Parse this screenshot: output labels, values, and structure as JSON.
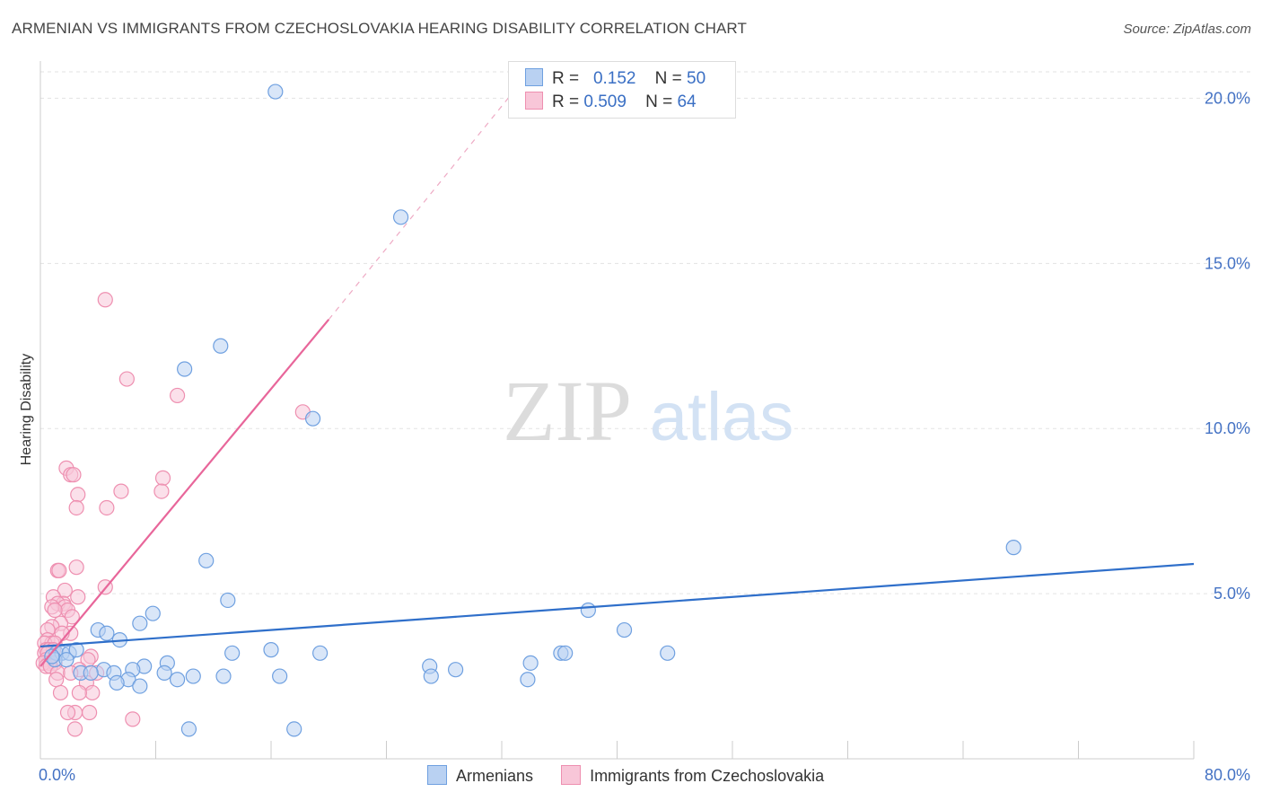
{
  "title": "ARMENIAN VS IMMIGRANTS FROM CZECHOSLOVAKIA HEARING DISABILITY CORRELATION CHART",
  "source": "Source: ZipAtlas.com",
  "watermark": {
    "zip": "ZIP",
    "atlas": "atlas"
  },
  "legend": {
    "rows": [
      {
        "r_label": "R =",
        "r_value": "0.152",
        "n_label": "N =",
        "n_value": "50"
      },
      {
        "r_label": "R =",
        "r_value": "0.509",
        "n_label": "N =",
        "n_value": "64"
      }
    ]
  },
  "chart_data": {
    "type": "scatter",
    "title": "ARMENIAN VS IMMIGRANTS FROM CZECHOSLOVAKIA HEARING DISABILITY CORRELATION CHART",
    "xlabel": "",
    "ylabel": "Hearing Disability",
    "xlim": [
      0,
      80
    ],
    "ylim": [
      0,
      20.8
    ],
    "x_tick_labels": [
      "0.0%",
      "80.0%"
    ],
    "y_ticks": [
      5,
      10,
      15,
      20
    ],
    "y_tick_labels": [
      "5.0%",
      "10.0%",
      "15.0%",
      "20.0%"
    ],
    "grid": true,
    "legend_placement": "top-center",
    "series": [
      {
        "name": "Armenians",
        "color": "#6fa0e0",
        "fill": "#b9d1f2",
        "r": 0.152,
        "n": 50,
        "trend": {
          "x0": 0,
          "y0": 3.4,
          "x1": 80,
          "y1": 5.9
        },
        "points": [
          [
            16.3,
            20.2
          ],
          [
            25.0,
            16.4
          ],
          [
            12.5,
            12.5
          ],
          [
            10.0,
            11.8
          ],
          [
            18.9,
            10.3
          ],
          [
            67.5,
            6.4
          ],
          [
            11.5,
            6.0
          ],
          [
            13.0,
            4.8
          ],
          [
            7.8,
            4.4
          ],
          [
            38.0,
            4.5
          ],
          [
            6.9,
            4.1
          ],
          [
            4.0,
            3.9
          ],
          [
            40.5,
            3.9
          ],
          [
            4.6,
            3.8
          ],
          [
            5.5,
            3.6
          ],
          [
            1.1,
            3.2
          ],
          [
            1.5,
            3.2
          ],
          [
            2.0,
            3.2
          ],
          [
            2.5,
            3.3
          ],
          [
            13.3,
            3.2
          ],
          [
            16.0,
            3.3
          ],
          [
            19.4,
            3.2
          ],
          [
            36.1,
            3.2
          ],
          [
            36.4,
            3.2
          ],
          [
            43.5,
            3.2
          ],
          [
            1.0,
            3.0
          ],
          [
            1.8,
            3.0
          ],
          [
            8.8,
            2.9
          ],
          [
            34.0,
            2.9
          ],
          [
            7.2,
            2.8
          ],
          [
            27.0,
            2.8
          ],
          [
            28.8,
            2.7
          ],
          [
            4.4,
            2.7
          ],
          [
            6.4,
            2.7
          ],
          [
            2.8,
            2.6
          ],
          [
            5.1,
            2.6
          ],
          [
            8.6,
            2.6
          ],
          [
            3.5,
            2.6
          ],
          [
            6.1,
            2.4
          ],
          [
            10.6,
            2.5
          ],
          [
            12.7,
            2.5
          ],
          [
            16.6,
            2.5
          ],
          [
            27.1,
            2.5
          ],
          [
            9.5,
            2.4
          ],
          [
            33.8,
            2.4
          ],
          [
            5.3,
            2.3
          ],
          [
            6.9,
            2.2
          ],
          [
            10.3,
            0.9
          ],
          [
            17.6,
            0.9
          ],
          [
            0.8,
            3.1
          ]
        ]
      },
      {
        "name": "Immigrants from Czechoslovakia",
        "color": "#ee8fb0",
        "fill": "#f8c6d8",
        "r": 0.509,
        "n": 64,
        "trend": {
          "x0": 0,
          "y0": 2.8,
          "x1": 20,
          "y1": 13.3
        },
        "trend_dashed": {
          "x0": 20,
          "y0": 13.3,
          "x1": 33,
          "y1": 20.3
        },
        "points": [
          [
            4.5,
            13.9
          ],
          [
            6.0,
            11.5
          ],
          [
            9.5,
            11.0
          ],
          [
            18.2,
            10.5
          ],
          [
            1.8,
            8.8
          ],
          [
            2.1,
            8.6
          ],
          [
            2.3,
            8.6
          ],
          [
            8.5,
            8.5
          ],
          [
            8.4,
            8.1
          ],
          [
            5.6,
            8.1
          ],
          [
            2.6,
            8.0
          ],
          [
            2.5,
            7.6
          ],
          [
            4.6,
            7.6
          ],
          [
            1.2,
            5.7
          ],
          [
            2.5,
            5.8
          ],
          [
            1.3,
            5.7
          ],
          [
            4.5,
            5.2
          ],
          [
            1.7,
            5.1
          ],
          [
            2.6,
            4.9
          ],
          [
            0.9,
            4.9
          ],
          [
            1.6,
            4.7
          ],
          [
            1.2,
            4.7
          ],
          [
            1.7,
            4.6
          ],
          [
            0.8,
            4.6
          ],
          [
            1.9,
            4.5
          ],
          [
            1.0,
            4.5
          ],
          [
            2.2,
            4.3
          ],
          [
            1.4,
            4.1
          ],
          [
            0.8,
            4.0
          ],
          [
            0.5,
            3.9
          ],
          [
            2.1,
            3.8
          ],
          [
            1.5,
            3.8
          ],
          [
            0.5,
            3.6
          ],
          [
            0.8,
            3.5
          ],
          [
            0.3,
            3.5
          ],
          [
            1.0,
            3.5
          ],
          [
            0.4,
            3.3
          ],
          [
            0.6,
            3.3
          ],
          [
            0.9,
            3.3
          ],
          [
            0.3,
            3.2
          ],
          [
            0.5,
            3.2
          ],
          [
            0.8,
            3.1
          ],
          [
            0.4,
            3.0
          ],
          [
            3.5,
            3.1
          ],
          [
            3.3,
            3.0
          ],
          [
            0.6,
            2.9
          ],
          [
            0.2,
            2.9
          ],
          [
            1.0,
            2.9
          ],
          [
            0.4,
            2.8
          ],
          [
            0.7,
            2.8
          ],
          [
            2.7,
            2.7
          ],
          [
            1.2,
            2.6
          ],
          [
            2.1,
            2.6
          ],
          [
            3.9,
            2.6
          ],
          [
            1.1,
            2.4
          ],
          [
            3.2,
            2.3
          ],
          [
            3.6,
            2.0
          ],
          [
            2.7,
            2.0
          ],
          [
            1.4,
            2.0
          ],
          [
            2.4,
            1.4
          ],
          [
            3.4,
            1.4
          ],
          [
            1.9,
            1.4
          ],
          [
            6.4,
            1.2
          ],
          [
            2.4,
            0.9
          ]
        ]
      }
    ]
  }
}
